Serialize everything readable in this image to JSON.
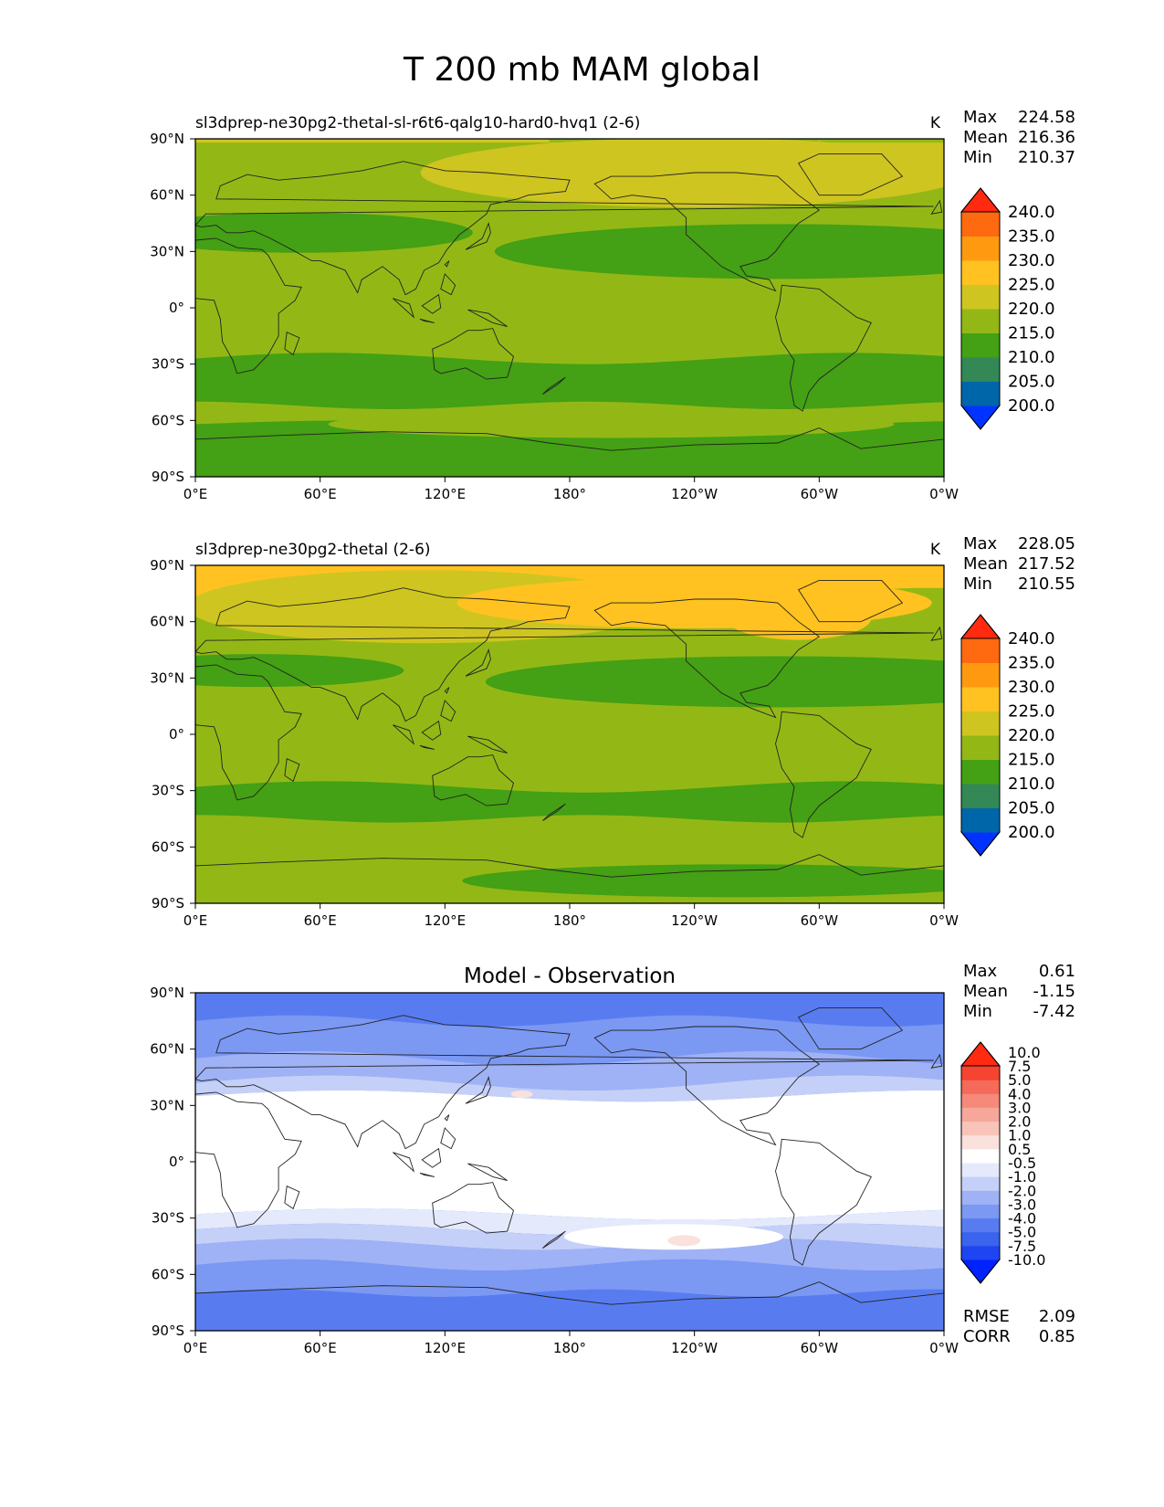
{
  "figure": {
    "title": "T 200 mb MAM global"
  },
  "panels": [
    {
      "id": "test",
      "title_left": "sl3dprep-ne30pg2-thetal-sl-r6t6-qalg10-hard0-hvq1 (2-6)",
      "title_center": "",
      "units": "K",
      "stats": [
        {
          "label": "Max",
          "value": "224.58"
        },
        {
          "label": "Mean",
          "value": "216.36"
        },
        {
          "label": "Min",
          "value": "210.37"
        }
      ],
      "colorbar": {
        "levels": [
          "200.0",
          "205.0",
          "210.0",
          "215.0",
          "220.0",
          "225.0",
          "230.0",
          "235.0",
          "240.0"
        ],
        "colors": [
          "#0033ff",
          "#0066aa",
          "#338855",
          "#44a014",
          "#93b816",
          "#cfc520",
          "#ffc220",
          "#ff9a10",
          "#ff6a10",
          "#ff2a10"
        ]
      },
      "bottom_stats": []
    },
    {
      "id": "reference",
      "title_left": "sl3dprep-ne30pg2-thetal (2-6)",
      "title_center": "",
      "units": "K",
      "stats": [
        {
          "label": "Max",
          "value": "228.05"
        },
        {
          "label": "Mean",
          "value": "217.52"
        },
        {
          "label": "Min",
          "value": "210.55"
        }
      ],
      "colorbar": {
        "levels": [
          "200.0",
          "205.0",
          "210.0",
          "215.0",
          "220.0",
          "225.0",
          "230.0",
          "235.0",
          "240.0"
        ],
        "colors": [
          "#0033ff",
          "#0066aa",
          "#338855",
          "#44a014",
          "#93b816",
          "#cfc520",
          "#ffc220",
          "#ff9a10",
          "#ff6a10",
          "#ff2a10"
        ]
      },
      "bottom_stats": []
    },
    {
      "id": "difference",
      "title_left": "",
      "title_center": "Model - Observation",
      "units": "",
      "stats": [
        {
          "label": "Max",
          "value": "0.61"
        },
        {
          "label": "Mean",
          "value": "-1.15"
        },
        {
          "label": "Min",
          "value": "-7.42"
        }
      ],
      "colorbar": {
        "levels": [
          "-10.0",
          "-7.5",
          "-5.0",
          "-4.0",
          "-3.0",
          "-2.0",
          "-1.0",
          "-0.5",
          "0.5",
          "1.0",
          "2.0",
          "3.0",
          "4.0",
          "5.0",
          "7.5",
          "10.0"
        ],
        "colors": [
          "#0022ff",
          "#1f44f2",
          "#3a63ee",
          "#587cf0",
          "#7b98f3",
          "#9fb2f5",
          "#c4d0f8",
          "#e4eafb",
          "#ffffff",
          "#fbe1dc",
          "#f8c4ba",
          "#f6a79a",
          "#f58a7a",
          "#f56a58",
          "#f54430",
          "#ff2a10"
        ]
      },
      "bottom_stats": [
        {
          "label": "RMSE",
          "value": "2.09"
        },
        {
          "label": "CORR",
          "value": "0.85"
        }
      ]
    }
  ],
  "axes": {
    "x_ticks": [
      "0°E",
      "60°E",
      "120°E",
      "180°",
      "120°W",
      "60°W",
      "0°W"
    ],
    "y_ticks": [
      "90°N",
      "60°N",
      "30°N",
      "0°",
      "30°S",
      "60°S",
      "90°S"
    ]
  }
}
